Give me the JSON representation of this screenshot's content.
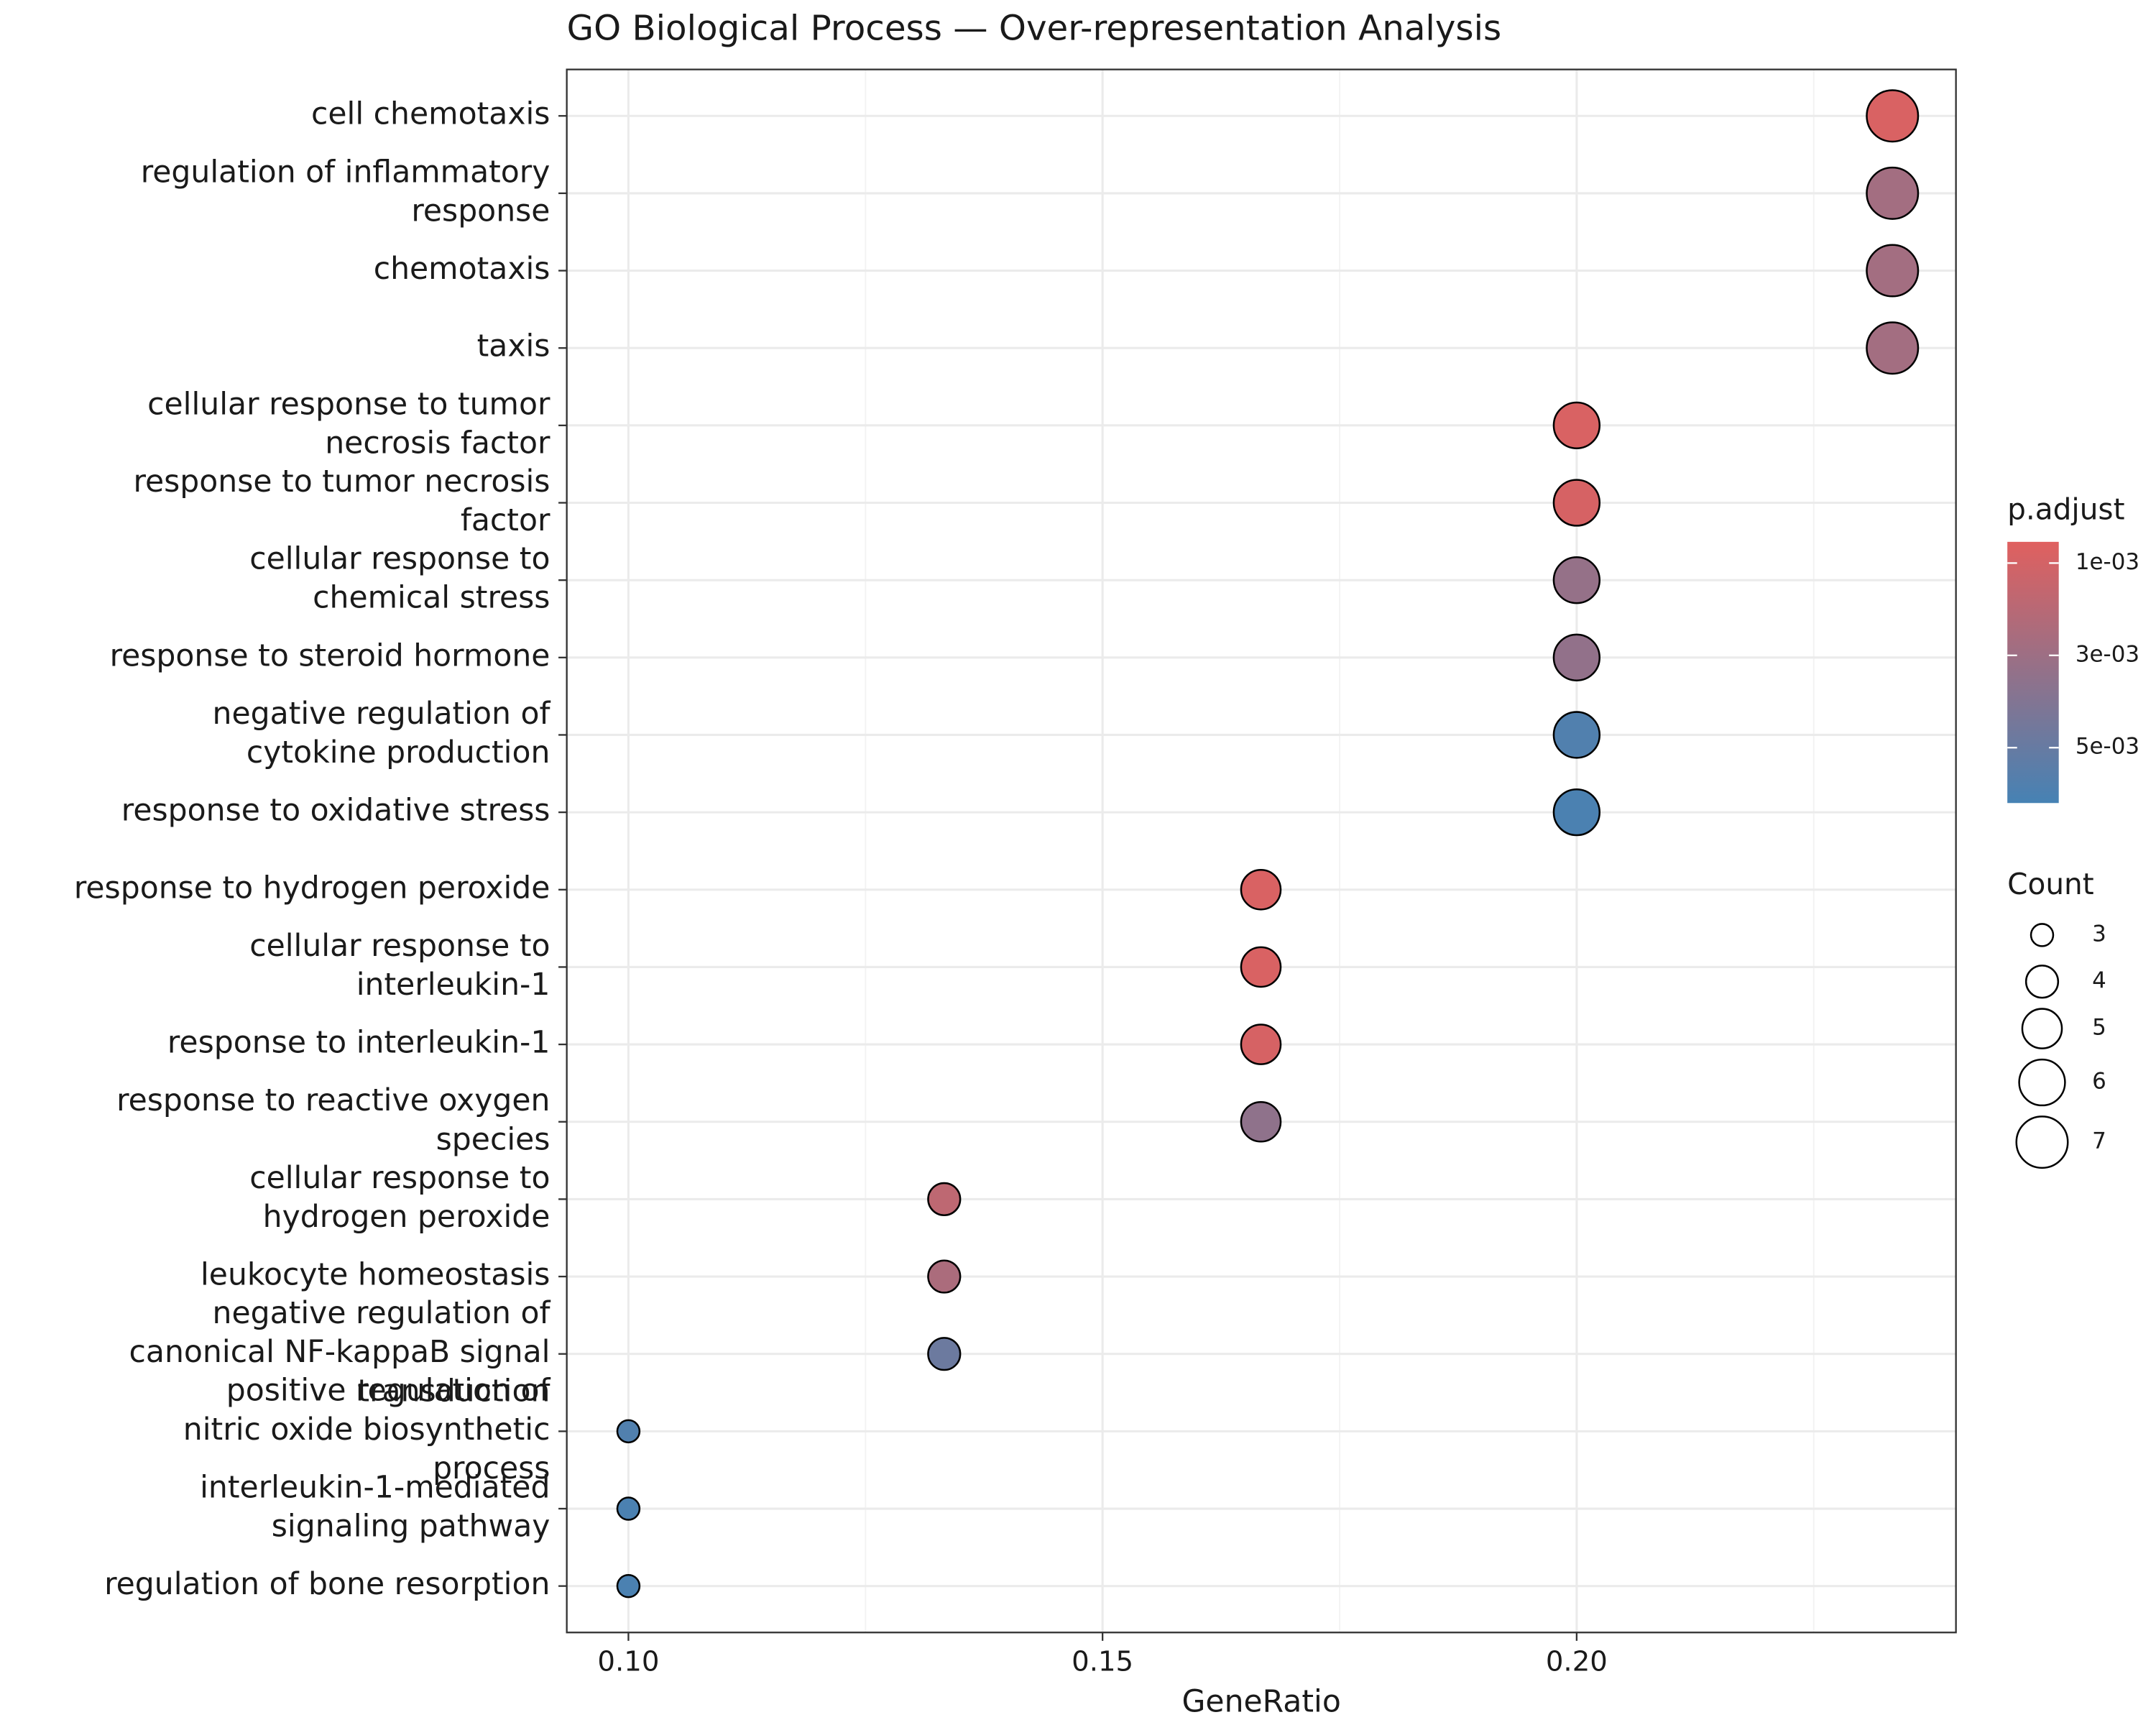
{
  "chart_data": {
    "type": "dot",
    "title": "GO Biological Process — Over-representation Analysis",
    "x_label": "GeneRatio",
    "categories": [
      [
        "cell chemotaxis"
      ],
      [
        "regulation of inflammatory",
        "response"
      ],
      [
        "chemotaxis"
      ],
      [
        "taxis"
      ],
      [
        "cellular response to tumor",
        "necrosis factor"
      ],
      [
        "response to tumor necrosis",
        "factor"
      ],
      [
        "cellular response to",
        "chemical stress"
      ],
      [
        "response to steroid hormone"
      ],
      [
        "negative regulation of",
        "cytokine production"
      ],
      [
        "response to oxidative stress"
      ],
      [
        "response to hydrogen peroxide"
      ],
      [
        "cellular response to",
        "interleukin-1"
      ],
      [
        "response to interleukin-1"
      ],
      [
        "response to reactive oxygen",
        "species"
      ],
      [
        "cellular response to",
        "hydrogen peroxide"
      ],
      [
        "leukocyte homeostasis"
      ],
      [
        "negative regulation of",
        "canonical NF-kappaB signal",
        "transduction"
      ],
      [
        "positive regulation of",
        "nitric oxide biosynthetic",
        "process"
      ],
      [
        "interleukin-1-mediated",
        "signaling pathway"
      ],
      [
        "regulation of bone resorption"
      ]
    ],
    "gene_ratio": [
      0.2333,
      0.2333,
      0.2333,
      0.2333,
      0.2,
      0.2,
      0.2,
      0.2,
      0.2,
      0.2,
      0.1667,
      0.1667,
      0.1667,
      0.1667,
      0.1333,
      0.1333,
      0.1333,
      0.1,
      0.1,
      0.1
    ],
    "count": [
      7,
      7,
      7,
      7,
      6,
      6,
      6,
      6,
      6,
      6,
      5,
      5,
      5,
      5,
      4,
      4,
      4,
      3,
      3,
      3
    ],
    "p_adjust": [
      0.0008,
      0.0028,
      0.0028,
      0.0028,
      0.0008,
      0.0009,
      0.0033,
      0.0034,
      0.0058,
      0.006,
      0.0008,
      0.0008,
      0.0009,
      0.0035,
      0.0018,
      0.0025,
      0.0048,
      0.0058,
      0.006,
      0.006
    ],
    "xlim": [
      0.0935,
      0.24
    ],
    "xticks": [
      {
        "value": 0.1,
        "label": "0.10"
      },
      {
        "value": 0.15,
        "label": "0.15"
      },
      {
        "value": 0.2,
        "label": "0.20"
      }
    ],
    "grid": true,
    "color_legend": {
      "title": "p.adjust",
      "lim": [
        0.00054,
        0.0062
      ],
      "low_color": "#e0605f",
      "high_color": "#4682b4",
      "ticks": [
        {
          "value": 0.001,
          "label": "1e-03"
        },
        {
          "value": 0.003,
          "label": "3e-03"
        },
        {
          "value": 0.005,
          "label": "5e-03"
        }
      ]
    },
    "size_legend": {
      "title": "Count",
      "ticks": [
        3,
        4,
        5,
        6,
        7
      ]
    }
  }
}
